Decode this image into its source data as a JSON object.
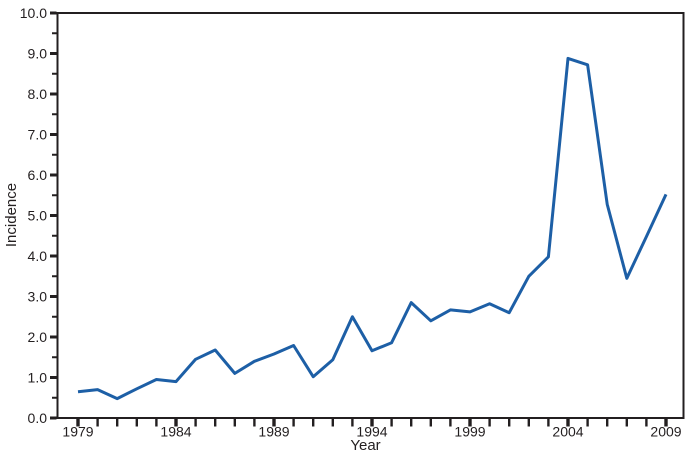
{
  "chart_data": {
    "type": "line",
    "title": "",
    "xlabel": "Year",
    "ylabel": "Incidence",
    "series_name": "Incidence",
    "x": [
      1979,
      1980,
      1981,
      1982,
      1983,
      1984,
      1985,
      1986,
      1987,
      1988,
      1989,
      1990,
      1991,
      1992,
      1993,
      1994,
      1995,
      1996,
      1997,
      1998,
      1999,
      2000,
      2001,
      2002,
      2003,
      2004,
      2005,
      2006,
      2007,
      2008,
      2009
    ],
    "values": [
      0.65,
      0.7,
      0.48,
      0.72,
      0.95,
      0.9,
      1.45,
      1.68,
      1.1,
      1.4,
      1.58,
      1.79,
      1.02,
      1.44,
      2.5,
      1.66,
      1.86,
      2.85,
      2.4,
      2.67,
      2.62,
      2.82,
      2.6,
      3.5,
      3.98,
      8.88,
      8.72,
      5.28,
      3.45,
      4.48,
      5.52
    ],
    "xlim": [
      1979,
      2009
    ],
    "ylim": [
      0,
      10
    ],
    "y_ticks": [
      0,
      1,
      2,
      3,
      4,
      5,
      6,
      7,
      8,
      9,
      10
    ],
    "y_tick_labels": [
      "0.0",
      "1.0",
      "2.0",
      "3.0",
      "4.0",
      "5.0",
      "6.0",
      "7.0",
      "8.0",
      "9.0",
      "10.0"
    ],
    "y_minor_tick_step": 0.5,
    "x_labeled_ticks": [
      1979,
      1984,
      1989,
      1994,
      1999,
      2004,
      2009
    ],
    "grid": false,
    "legend": "none",
    "frame": "box",
    "line_color": "#1d5fa6",
    "axis_color": "#231f20",
    "background": "#ffffff"
  }
}
